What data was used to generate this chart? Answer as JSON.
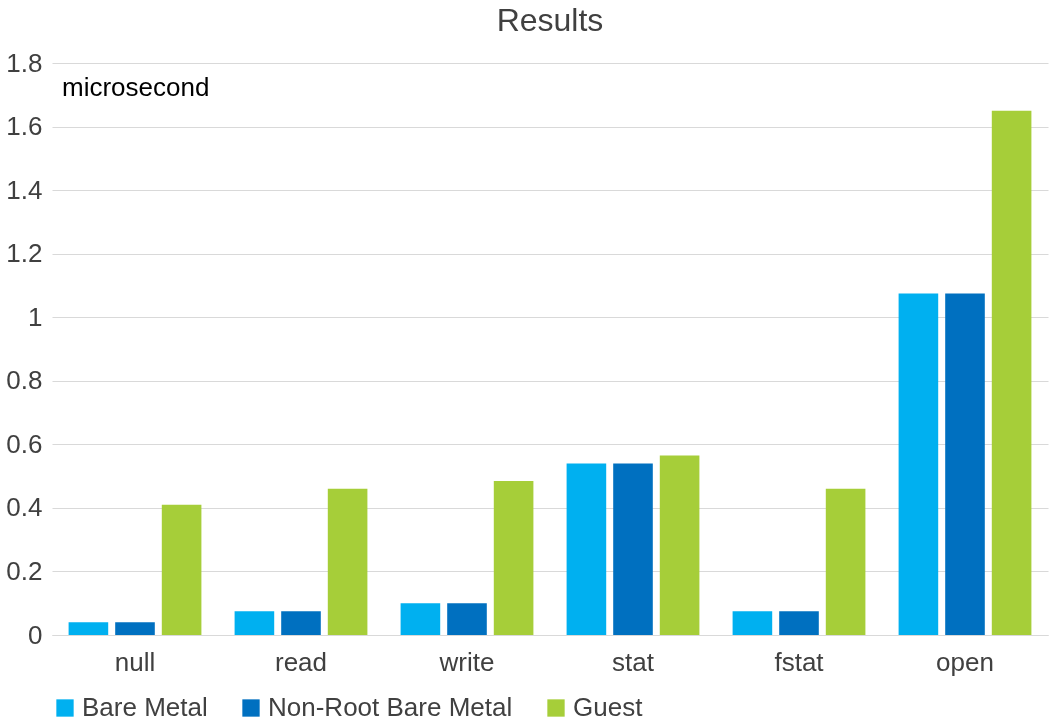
{
  "chart_data": {
    "type": "bar",
    "title": "Results",
    "annotations": [
      "microsecond"
    ],
    "categories": [
      "null",
      "read",
      "write",
      "stat",
      "fstat",
      "open"
    ],
    "series": [
      {
        "name": "Bare Metal",
        "color": "#00b0f0",
        "values": [
          0.04,
          0.075,
          0.1,
          0.54,
          0.075,
          1.075
        ]
      },
      {
        "name": "Non-Root Bare Metal",
        "color": "#0070c0",
        "values": [
          0.04,
          0.075,
          0.1,
          0.54,
          0.075,
          1.075
        ]
      },
      {
        "name": "Guest",
        "color": "#a6ce39",
        "values": [
          0.41,
          0.46,
          0.485,
          0.565,
          0.46,
          1.65
        ]
      }
    ],
    "ylim": [
      0,
      1.8
    ],
    "yticks": [
      0,
      0.2,
      0.4,
      0.6,
      0.8,
      1,
      1.2,
      1.4,
      1.6,
      1.8
    ],
    "grid": "y",
    "legend": "bottom"
  }
}
